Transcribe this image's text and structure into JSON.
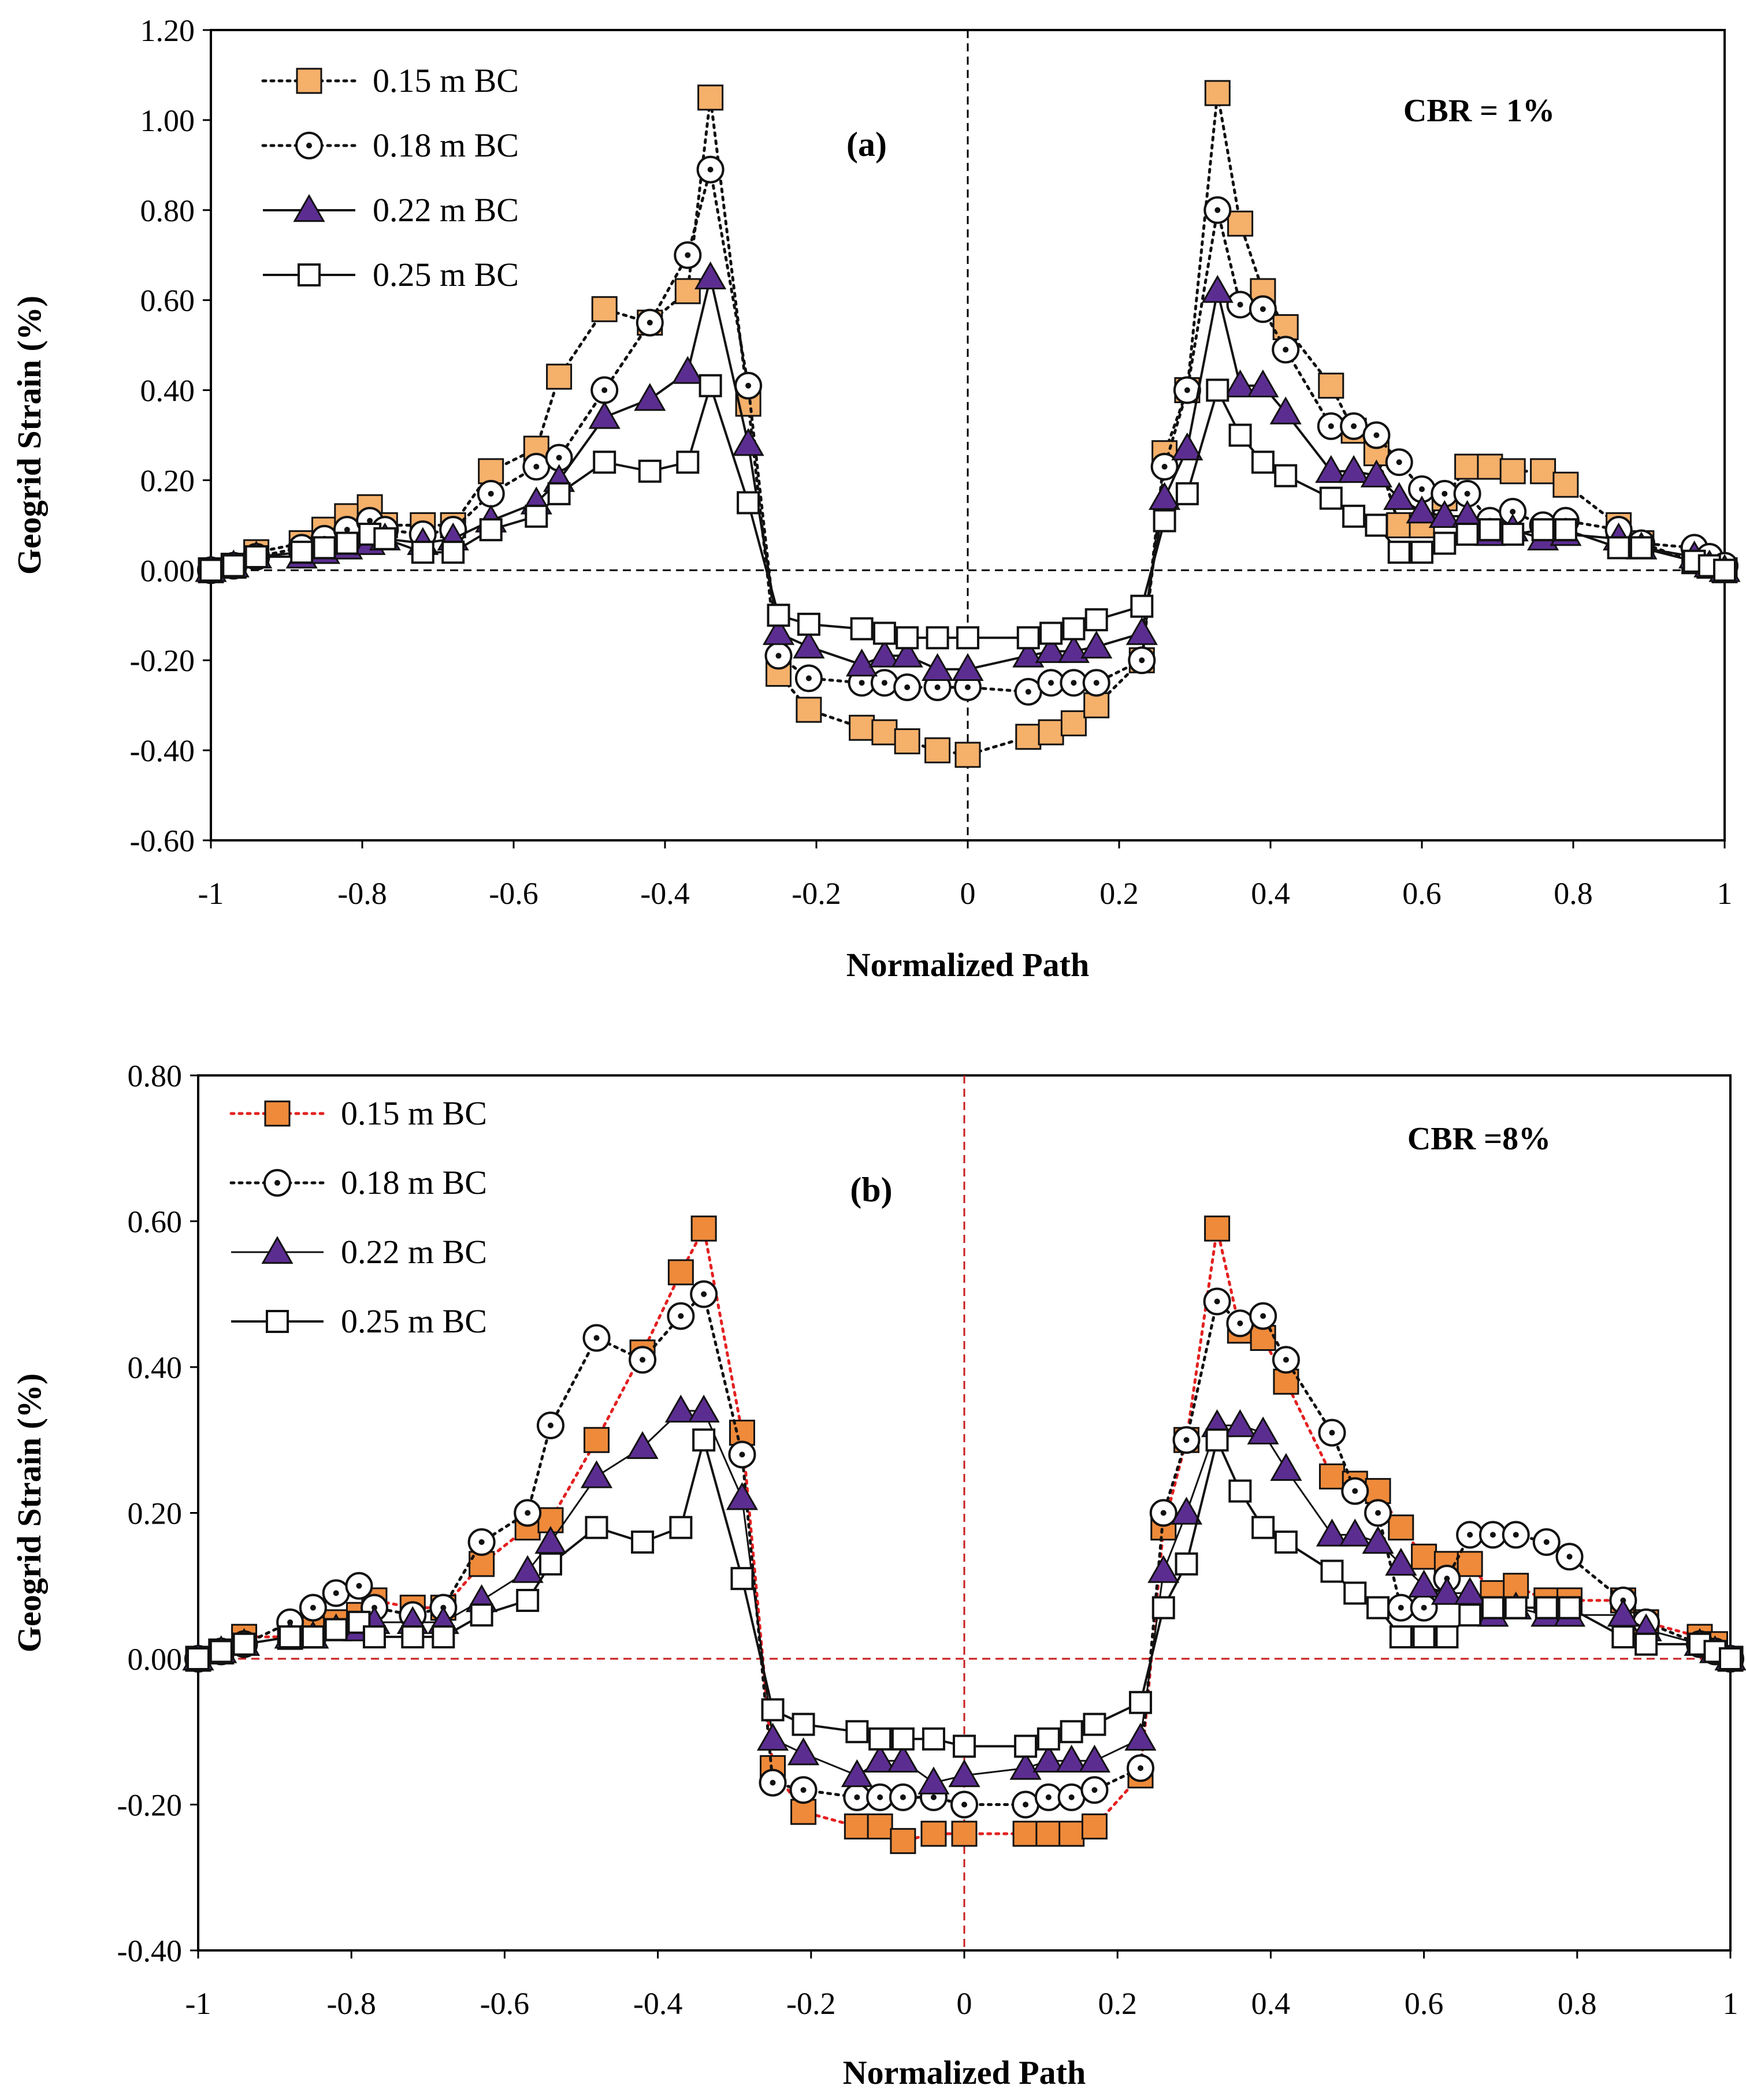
{
  "figure": {
    "colors": {
      "orange_a": "#f5b06a",
      "orange_b": "#ee8a3a",
      "purple": "#5c2d91",
      "red": "#e32020",
      "black": "#111111"
    }
  },
  "chart_data": [
    {
      "id": "a",
      "type": "line",
      "panel_label": "(a)",
      "annotation": "CBR = 1%",
      "xlabel": "Normalized Path",
      "ylabel": "Geogrid Strain (%)",
      "xlim": [
        -1,
        1
      ],
      "ylim": [
        -0.6,
        1.2
      ],
      "xticks": [
        "-1",
        "-0.8",
        "-0.6",
        "-0.4",
        "-0.2",
        "0",
        "0.2",
        "0.4",
        "0.6",
        "0.8",
        "1"
      ],
      "yticks": [
        "-0.60",
        "-0.40",
        "-0.20",
        "0.00",
        "0.20",
        "0.40",
        "0.60",
        "0.80",
        "1.00",
        "1.20"
      ],
      "reference_line_color": "#000000",
      "series": [
        {
          "name": "0.15 m BC",
          "marker": "square",
          "fill": "#f5b06a",
          "line": "dotted",
          "line_color": "#111111",
          "x": [
            -1,
            -0.97,
            -0.94,
            -0.88,
            -0.85,
            -0.82,
            -0.79,
            -0.77,
            -0.72,
            -0.68,
            -0.63,
            -0.57,
            -0.54,
            -0.48,
            -0.42,
            -0.37,
            -0.34,
            -0.29,
            -0.25,
            -0.21,
            -0.14,
            -0.11,
            -0.08,
            -0.04,
            0,
            0.08,
            0.11,
            0.14,
            0.17,
            0.23,
            0.26,
            0.29,
            0.33,
            0.36,
            0.39,
            0.42,
            0.48,
            0.51,
            0.54,
            0.57,
            0.6,
            0.63,
            0.66,
            0.69,
            0.72,
            0.76,
            0.79,
            0.86,
            0.89,
            0.96,
            0.98,
            1
          ],
          "y": [
            0,
            0.01,
            0.04,
            0.06,
            0.09,
            0.12,
            0.14,
            0.1,
            0.1,
            0.1,
            0.22,
            0.27,
            0.43,
            0.58,
            0.55,
            0.62,
            1.05,
            0.37,
            -0.23,
            -0.31,
            -0.35,
            -0.36,
            -0.38,
            -0.4,
            -0.41,
            -0.37,
            -0.36,
            -0.34,
            -0.3,
            -0.2,
            0.26,
            0.4,
            1.06,
            0.77,
            0.62,
            0.54,
            0.41,
            0.31,
            0.26,
            0.1,
            0.1,
            0.16,
            0.23,
            0.23,
            0.22,
            0.22,
            0.19,
            0.1,
            0.06,
            0.02,
            0.01,
            0
          ]
        },
        {
          "name": "0.18 m BC",
          "marker": "circle-dot",
          "fill": "#ffffff",
          "line": "dotted",
          "line_color": "#111111",
          "x": [
            -1,
            -0.97,
            -0.94,
            -0.88,
            -0.85,
            -0.82,
            -0.79,
            -0.77,
            -0.72,
            -0.68,
            -0.63,
            -0.57,
            -0.54,
            -0.48,
            -0.42,
            -0.37,
            -0.34,
            -0.29,
            -0.25,
            -0.21,
            -0.14,
            -0.11,
            -0.08,
            -0.04,
            0,
            0.08,
            0.11,
            0.14,
            0.17,
            0.23,
            0.26,
            0.29,
            0.33,
            0.36,
            0.39,
            0.42,
            0.48,
            0.51,
            0.54,
            0.57,
            0.6,
            0.63,
            0.66,
            0.69,
            0.72,
            0.76,
            0.79,
            0.86,
            0.89,
            0.96,
            0.98,
            1
          ],
          "y": [
            0,
            0.01,
            0.03,
            0.05,
            0.07,
            0.09,
            0.11,
            0.09,
            0.08,
            0.09,
            0.17,
            0.23,
            0.25,
            0.4,
            0.55,
            0.7,
            0.89,
            0.41,
            -0.19,
            -0.24,
            -0.25,
            -0.25,
            -0.26,
            -0.26,
            -0.26,
            -0.27,
            -0.25,
            -0.25,
            -0.25,
            -0.2,
            0.23,
            0.4,
            0.8,
            0.59,
            0.58,
            0.49,
            0.32,
            0.32,
            0.3,
            0.24,
            0.18,
            0.17,
            0.17,
            0.11,
            0.13,
            0.1,
            0.11,
            0.09,
            0.06,
            0.05,
            0.03,
            0.01
          ]
        },
        {
          "name": "0.22 m BC",
          "marker": "triangle",
          "fill": "#5c2d91",
          "line": "solid",
          "line_color": "#111111",
          "line_width": 4,
          "x": [
            -1,
            -0.97,
            -0.94,
            -0.88,
            -0.85,
            -0.82,
            -0.79,
            -0.77,
            -0.72,
            -0.68,
            -0.63,
            -0.57,
            -0.54,
            -0.48,
            -0.42,
            -0.37,
            -0.34,
            -0.29,
            -0.25,
            -0.21,
            -0.14,
            -0.11,
            -0.08,
            -0.04,
            0,
            0.08,
            0.11,
            0.14,
            0.17,
            0.23,
            0.26,
            0.29,
            0.33,
            0.36,
            0.39,
            0.42,
            0.48,
            0.51,
            0.54,
            0.57,
            0.6,
            0.63,
            0.66,
            0.69,
            0.72,
            0.76,
            0.79,
            0.86,
            0.89,
            0.96,
            0.98,
            1
          ],
          "y": [
            0,
            0.01,
            0.03,
            0.03,
            0.04,
            0.05,
            0.06,
            0.07,
            0.06,
            0.07,
            0.11,
            0.15,
            0.2,
            0.34,
            0.38,
            0.44,
            0.65,
            0.28,
            -0.14,
            -0.17,
            -0.21,
            -0.19,
            -0.19,
            -0.22,
            -0.22,
            -0.19,
            -0.18,
            -0.18,
            -0.17,
            -0.14,
            0.16,
            0.27,
            0.62,
            0.41,
            0.41,
            0.35,
            0.22,
            0.22,
            0.21,
            0.16,
            0.13,
            0.12,
            0.12,
            0.08,
            0.09,
            0.07,
            0.08,
            0.07,
            0.05,
            0.03,
            0.01,
            0
          ]
        },
        {
          "name": "0.25 m BC",
          "marker": "square-open",
          "fill": "#ffffff",
          "line": "solid",
          "line_color": "#111111",
          "line_width": 4,
          "x": [
            -1,
            -0.97,
            -0.94,
            -0.88,
            -0.85,
            -0.82,
            -0.79,
            -0.77,
            -0.72,
            -0.68,
            -0.63,
            -0.57,
            -0.54,
            -0.48,
            -0.42,
            -0.37,
            -0.34,
            -0.29,
            -0.25,
            -0.21,
            -0.14,
            -0.11,
            -0.08,
            -0.04,
            0,
            0.08,
            0.11,
            0.14,
            0.17,
            0.23,
            0.26,
            0.29,
            0.33,
            0.36,
            0.39,
            0.42,
            0.48,
            0.51,
            0.54,
            0.57,
            0.6,
            0.63,
            0.66,
            0.69,
            0.72,
            0.76,
            0.79,
            0.86,
            0.89,
            0.96,
            0.98,
            1
          ],
          "y": [
            0,
            0.01,
            0.03,
            0.04,
            0.05,
            0.06,
            0.08,
            0.07,
            0.04,
            0.04,
            0.09,
            0.12,
            0.17,
            0.24,
            0.22,
            0.24,
            0.41,
            0.15,
            -0.1,
            -0.12,
            -0.13,
            -0.14,
            -0.15,
            -0.15,
            -0.15,
            -0.15,
            -0.14,
            -0.13,
            -0.11,
            -0.08,
            0.11,
            0.17,
            0.4,
            0.3,
            0.24,
            0.21,
            0.16,
            0.12,
            0.1,
            0.04,
            0.04,
            0.06,
            0.08,
            0.09,
            0.08,
            0.09,
            0.09,
            0.05,
            0.05,
            0.02,
            0.01,
            0
          ]
        }
      ]
    },
    {
      "id": "b",
      "type": "line",
      "panel_label": "(b)",
      "annotation": "CBR =8%",
      "xlabel": "Normalized Path",
      "ylabel": "Geogrid Strain (%)",
      "xlim": [
        -1,
        1
      ],
      "ylim": [
        -0.4,
        0.8
      ],
      "xticks": [
        "-1",
        "-0.8",
        "-0.6",
        "-0.4",
        "-0.2",
        "0",
        "0.2",
        "0.4",
        "0.6",
        "0.8",
        "1"
      ],
      "yticks": [
        "-0.40",
        "-0.20",
        "0.00",
        "0.20",
        "0.40",
        "0.60",
        "0.80"
      ],
      "reference_line_color": "#c81e1e",
      "series": [
        {
          "name": "0.15 m BC",
          "marker": "square",
          "fill": "#ee8a3a",
          "line": "dotted",
          "line_color": "#e32020",
          "x": [
            -1,
            -0.97,
            -0.94,
            -0.88,
            -0.85,
            -0.82,
            -0.79,
            -0.77,
            -0.72,
            -0.68,
            -0.63,
            -0.57,
            -0.54,
            -0.48,
            -0.42,
            -0.37,
            -0.34,
            -0.29,
            -0.25,
            -0.21,
            -0.14,
            -0.11,
            -0.08,
            -0.04,
            0,
            0.08,
            0.11,
            0.14,
            0.17,
            0.23,
            0.26,
            0.29,
            0.33,
            0.36,
            0.39,
            0.42,
            0.48,
            0.51,
            0.54,
            0.57,
            0.6,
            0.63,
            0.66,
            0.69,
            0.72,
            0.76,
            0.79,
            0.86,
            0.89,
            0.96,
            0.98,
            1
          ],
          "y": [
            0,
            0.01,
            0.03,
            0.03,
            0.04,
            0.05,
            0.06,
            0.08,
            0.07,
            0.07,
            0.13,
            0.18,
            0.19,
            0.3,
            0.42,
            0.53,
            0.59,
            0.31,
            -0.15,
            -0.21,
            -0.23,
            -0.23,
            -0.25,
            -0.24,
            -0.24,
            -0.24,
            -0.24,
            -0.24,
            -0.23,
            -0.16,
            0.18,
            0.3,
            0.59,
            0.45,
            0.44,
            0.38,
            0.25,
            0.24,
            0.23,
            0.18,
            0.14,
            0.13,
            0.13,
            0.09,
            0.1,
            0.08,
            0.08,
            0.08,
            0.05,
            0.03,
            0.02,
            0
          ]
        },
        {
          "name": "0.18 m BC",
          "marker": "circle-dot",
          "fill": "#ffffff",
          "line": "dotted",
          "line_color": "#111111",
          "x": [
            -1,
            -0.97,
            -0.94,
            -0.88,
            -0.85,
            -0.82,
            -0.79,
            -0.77,
            -0.72,
            -0.68,
            -0.63,
            -0.57,
            -0.54,
            -0.48,
            -0.42,
            -0.37,
            -0.34,
            -0.29,
            -0.25,
            -0.21,
            -0.14,
            -0.11,
            -0.08,
            -0.04,
            0,
            0.08,
            0.11,
            0.14,
            0.17,
            0.23,
            0.26,
            0.29,
            0.33,
            0.36,
            0.39,
            0.42,
            0.48,
            0.51,
            0.54,
            0.57,
            0.6,
            0.63,
            0.66,
            0.69,
            0.72,
            0.76,
            0.79,
            0.86,
            0.89,
            0.96,
            0.98,
            1
          ],
          "y": [
            0,
            0.01,
            0.02,
            0.05,
            0.07,
            0.09,
            0.1,
            0.07,
            0.06,
            0.07,
            0.16,
            0.2,
            0.32,
            0.44,
            0.41,
            0.47,
            0.5,
            0.28,
            -0.17,
            -0.18,
            -0.19,
            -0.19,
            -0.19,
            -0.19,
            -0.2,
            -0.2,
            -0.19,
            -0.19,
            -0.18,
            -0.15,
            0.2,
            0.3,
            0.49,
            0.46,
            0.47,
            0.41,
            0.31,
            0.23,
            0.2,
            0.07,
            0.07,
            0.11,
            0.17,
            0.17,
            0.17,
            0.16,
            0.14,
            0.08,
            0.05,
            0.02,
            0.01,
            0
          ]
        },
        {
          "name": "0.22 m BC",
          "marker": "triangle",
          "fill": "#5c2d91",
          "line": "solid",
          "line_color": "#111111",
          "line_width": 3,
          "x": [
            -1,
            -0.97,
            -0.94,
            -0.88,
            -0.85,
            -0.82,
            -0.79,
            -0.77,
            -0.72,
            -0.68,
            -0.63,
            -0.57,
            -0.54,
            -0.48,
            -0.42,
            -0.37,
            -0.34,
            -0.29,
            -0.25,
            -0.21,
            -0.14,
            -0.11,
            -0.08,
            -0.04,
            0,
            0.08,
            0.11,
            0.14,
            0.17,
            0.23,
            0.26,
            0.29,
            0.33,
            0.36,
            0.39,
            0.42,
            0.48,
            0.51,
            0.54,
            0.57,
            0.6,
            0.63,
            0.66,
            0.69,
            0.72,
            0.76,
            0.79,
            0.86,
            0.89,
            0.96,
            0.98,
            1
          ],
          "y": [
            0,
            0.01,
            0.02,
            0.03,
            0.03,
            0.04,
            0.04,
            0.05,
            0.05,
            0.05,
            0.08,
            0.12,
            0.16,
            0.25,
            0.29,
            0.34,
            0.34,
            0.22,
            -0.11,
            -0.13,
            -0.16,
            -0.14,
            -0.14,
            -0.17,
            -0.16,
            -0.15,
            -0.14,
            -0.14,
            -0.14,
            -0.11,
            0.12,
            0.2,
            0.32,
            0.32,
            0.31,
            0.26,
            0.17,
            0.17,
            0.16,
            0.13,
            0.1,
            0.09,
            0.09,
            0.06,
            0.07,
            0.06,
            0.06,
            0.06,
            0.04,
            0.02,
            0.01,
            0
          ]
        },
        {
          "name": "0.25 m BC",
          "marker": "square-open",
          "fill": "#ffffff",
          "line": "solid",
          "line_color": "#111111",
          "line_width": 4,
          "x": [
            -1,
            -0.97,
            -0.94,
            -0.88,
            -0.85,
            -0.82,
            -0.79,
            -0.77,
            -0.72,
            -0.68,
            -0.63,
            -0.57,
            -0.54,
            -0.48,
            -0.42,
            -0.37,
            -0.34,
            -0.29,
            -0.25,
            -0.21,
            -0.14,
            -0.11,
            -0.08,
            -0.04,
            0,
            0.08,
            0.11,
            0.14,
            0.17,
            0.23,
            0.26,
            0.29,
            0.33,
            0.36,
            0.39,
            0.42,
            0.48,
            0.51,
            0.54,
            0.57,
            0.6,
            0.63,
            0.66,
            0.69,
            0.72,
            0.76,
            0.79,
            0.86,
            0.89,
            0.96,
            0.98,
            1
          ],
          "y": [
            0,
            0.01,
            0.02,
            0.03,
            0.03,
            0.04,
            0.05,
            0.03,
            0.03,
            0.03,
            0.06,
            0.08,
            0.13,
            0.18,
            0.16,
            0.18,
            0.3,
            0.11,
            -0.07,
            -0.09,
            -0.1,
            -0.11,
            -0.11,
            -0.11,
            -0.12,
            -0.12,
            -0.11,
            -0.1,
            -0.09,
            -0.06,
            0.07,
            0.13,
            0.3,
            0.23,
            0.18,
            0.16,
            0.12,
            0.09,
            0.07,
            0.03,
            0.03,
            0.03,
            0.06,
            0.07,
            0.07,
            0.07,
            0.07,
            0.03,
            0.02,
            0.02,
            0.01,
            0
          ]
        }
      ]
    }
  ]
}
